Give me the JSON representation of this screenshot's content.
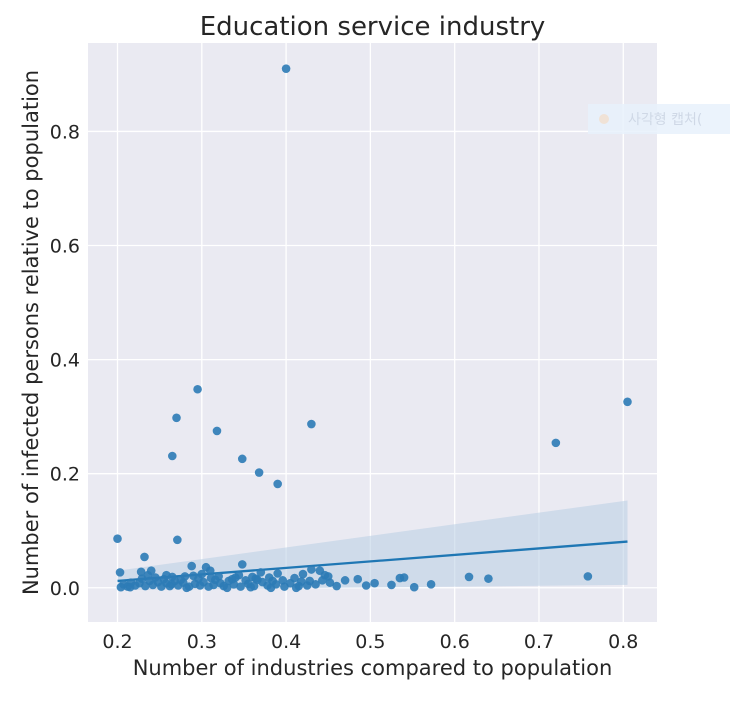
{
  "chart_data": {
    "type": "scatter",
    "title": "Education service industry",
    "xlabel": "Number of industries compared to population",
    "ylabel": "Number of infected persons relative to population",
    "xlim": [
      0.165,
      0.84
    ],
    "ylim": [
      -0.06,
      0.955
    ],
    "xticks": [
      0.2,
      0.3,
      0.4,
      0.5,
      0.6,
      0.7,
      0.8
    ],
    "xtick_labels": [
      "0.2",
      "0.3",
      "0.4",
      "0.5",
      "0.6",
      "0.7",
      "0.8"
    ],
    "yticks": [
      0.0,
      0.2,
      0.4,
      0.6,
      0.8
    ],
    "ytick_labels": [
      "0.0",
      "0.2",
      "0.4",
      "0.6",
      "0.8"
    ],
    "grid": true,
    "legend": {
      "placement": "top-right",
      "label": "사각형 캡처("
    },
    "colors": {
      "background": "#eaeaf2",
      "grid": "#ffffff",
      "points": "#2c7bb6",
      "fit_line": "#1f77b4",
      "confidence_band": "#b8cde3"
    },
    "points": [
      {
        "x": 0.4,
        "y": 0.91
      },
      {
        "x": 0.295,
        "y": 0.348
      },
      {
        "x": 0.805,
        "y": 0.326
      },
      {
        "x": 0.27,
        "y": 0.298
      },
      {
        "x": 0.43,
        "y": 0.287
      },
      {
        "x": 0.318,
        "y": 0.275
      },
      {
        "x": 0.72,
        "y": 0.254
      },
      {
        "x": 0.265,
        "y": 0.231
      },
      {
        "x": 0.348,
        "y": 0.226
      },
      {
        "x": 0.368,
        "y": 0.202
      },
      {
        "x": 0.39,
        "y": 0.182
      },
      {
        "x": 0.2,
        "y": 0.086
      },
      {
        "x": 0.271,
        "y": 0.084
      },
      {
        "x": 0.232,
        "y": 0.054
      },
      {
        "x": 0.348,
        "y": 0.041
      },
      {
        "x": 0.288,
        "y": 0.038
      },
      {
        "x": 0.305,
        "y": 0.036
      },
      {
        "x": 0.43,
        "y": 0.032
      },
      {
        "x": 0.44,
        "y": 0.03
      },
      {
        "x": 0.203,
        "y": 0.027
      },
      {
        "x": 0.228,
        "y": 0.028
      },
      {
        "x": 0.24,
        "y": 0.03
      },
      {
        "x": 0.31,
        "y": 0.03
      },
      {
        "x": 0.37,
        "y": 0.027
      },
      {
        "x": 0.39,
        "y": 0.025
      },
      {
        "x": 0.42,
        "y": 0.024
      },
      {
        "x": 0.446,
        "y": 0.022
      },
      {
        "x": 0.236,
        "y": 0.022
      },
      {
        "x": 0.245,
        "y": 0.018
      },
      {
        "x": 0.265,
        "y": 0.019
      },
      {
        "x": 0.28,
        "y": 0.02
      },
      {
        "x": 0.29,
        "y": 0.021
      },
      {
        "x": 0.32,
        "y": 0.02
      },
      {
        "x": 0.34,
        "y": 0.018
      },
      {
        "x": 0.36,
        "y": 0.019
      },
      {
        "x": 0.38,
        "y": 0.018
      },
      {
        "x": 0.41,
        "y": 0.017
      },
      {
        "x": 0.45,
        "y": 0.02
      },
      {
        "x": 0.47,
        "y": 0.013
      },
      {
        "x": 0.485,
        "y": 0.015
      },
      {
        "x": 0.505,
        "y": 0.008
      },
      {
        "x": 0.535,
        "y": 0.017
      },
      {
        "x": 0.54,
        "y": 0.018
      },
      {
        "x": 0.617,
        "y": 0.019
      },
      {
        "x": 0.64,
        "y": 0.016
      },
      {
        "x": 0.758,
        "y": 0.02
      },
      {
        "x": 0.572,
        "y": 0.006
      },
      {
        "x": 0.552,
        "y": 0.001
      },
      {
        "x": 0.525,
        "y": 0.005
      },
      {
        "x": 0.495,
        "y": 0.004
      },
      {
        "x": 0.46,
        "y": 0.003
      },
      {
        "x": 0.452,
        "y": 0.009
      },
      {
        "x": 0.435,
        "y": 0.006
      },
      {
        "x": 0.425,
        "y": 0.004
      },
      {
        "x": 0.415,
        "y": 0.003
      },
      {
        "x": 0.405,
        "y": 0.008
      },
      {
        "x": 0.398,
        "y": 0.002
      },
      {
        "x": 0.388,
        "y": 0.006
      },
      {
        "x": 0.378,
        "y": 0.004
      },
      {
        "x": 0.372,
        "y": 0.01
      },
      {
        "x": 0.362,
        "y": 0.003
      },
      {
        "x": 0.355,
        "y": 0.007
      },
      {
        "x": 0.346,
        "y": 0.002
      },
      {
        "x": 0.338,
        "y": 0.006
      },
      {
        "x": 0.332,
        "y": 0.012
      },
      {
        "x": 0.326,
        "y": 0.003
      },
      {
        "x": 0.322,
        "y": 0.008
      },
      {
        "x": 0.314,
        "y": 0.005
      },
      {
        "x": 0.308,
        "y": 0.002
      },
      {
        "x": 0.302,
        "y": 0.01
      },
      {
        "x": 0.298,
        "y": 0.004
      },
      {
        "x": 0.292,
        "y": 0.007
      },
      {
        "x": 0.285,
        "y": 0.002
      },
      {
        "x": 0.278,
        "y": 0.009
      },
      {
        "x": 0.272,
        "y": 0.004
      },
      {
        "x": 0.268,
        "y": 0.012
      },
      {
        "x": 0.262,
        "y": 0.003
      },
      {
        "x": 0.258,
        "y": 0.008
      },
      {
        "x": 0.252,
        "y": 0.002
      },
      {
        "x": 0.248,
        "y": 0.01
      },
      {
        "x": 0.242,
        "y": 0.005
      },
      {
        "x": 0.238,
        "y": 0.012
      },
      {
        "x": 0.233,
        "y": 0.003
      },
      {
        "x": 0.226,
        "y": 0.008
      },
      {
        "x": 0.221,
        "y": 0.004
      },
      {
        "x": 0.216,
        "y": 0.009
      },
      {
        "x": 0.212,
        "y": 0.002
      },
      {
        "x": 0.207,
        "y": 0.006
      },
      {
        "x": 0.204,
        "y": 0.001
      },
      {
        "x": 0.215,
        "y": 0.001
      },
      {
        "x": 0.229,
        "y": 0.016
      },
      {
        "x": 0.255,
        "y": 0.015
      },
      {
        "x": 0.275,
        "y": 0.014
      },
      {
        "x": 0.296,
        "y": 0.016
      },
      {
        "x": 0.316,
        "y": 0.014
      },
      {
        "x": 0.336,
        "y": 0.015
      },
      {
        "x": 0.352,
        "y": 0.013
      },
      {
        "x": 0.366,
        "y": 0.014
      },
      {
        "x": 0.384,
        "y": 0.012
      },
      {
        "x": 0.396,
        "y": 0.013
      },
      {
        "x": 0.418,
        "y": 0.011
      },
      {
        "x": 0.428,
        "y": 0.012
      },
      {
        "x": 0.443,
        "y": 0.013
      },
      {
        "x": 0.282,
        "y": 0.0
      },
      {
        "x": 0.33,
        "y": 0.0
      },
      {
        "x": 0.358,
        "y": 0.001
      },
      {
        "x": 0.382,
        "y": 0.0
      },
      {
        "x": 0.412,
        "y": 0.0
      },
      {
        "x": 0.258,
        "y": 0.022
      },
      {
        "x": 0.3,
        "y": 0.024
      },
      {
        "x": 0.344,
        "y": 0.022
      },
      {
        "x": 0.264,
        "y": 0.006
      },
      {
        "x": 0.311,
        "y": 0.017
      },
      {
        "x": 0.364,
        "y": 0.016
      }
    ],
    "regression": {
      "x": [
        0.2,
        0.805
      ],
      "y": [
        0.012,
        0.081
      ],
      "ci_upper": [
        0.03,
        0.153
      ],
      "ci_lower": [
        -0.004,
        0.005
      ]
    }
  }
}
